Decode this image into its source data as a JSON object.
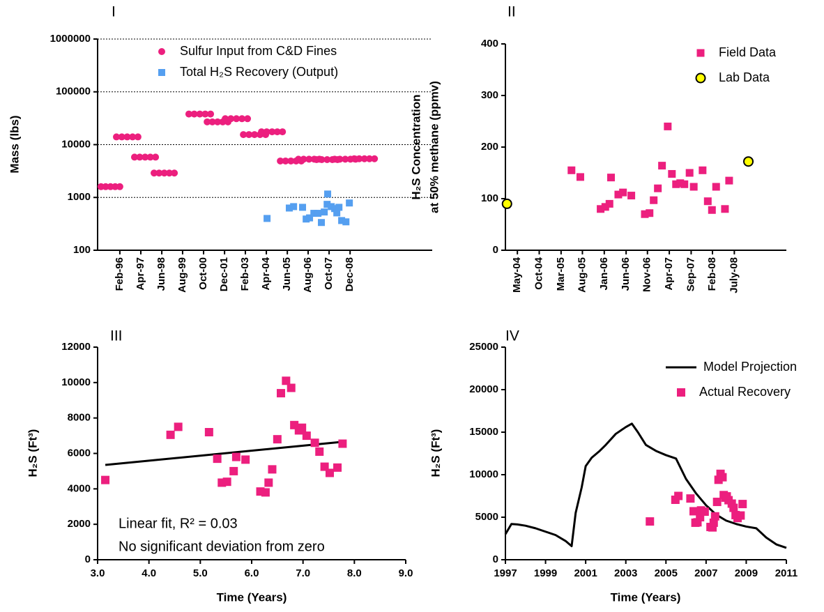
{
  "chart_data": [
    {
      "type": "scatter",
      "title": "I",
      "ylabel": "Mass (lbs)",
      "log_y": true,
      "grid": true,
      "legend": "upper right",
      "xlim": [
        1994.84,
        2013.5
      ],
      "xticks": [
        {
          "value": 1996.08,
          "label": "Feb-96"
        },
        {
          "value": 1997.25,
          "label": "Apr-97"
        },
        {
          "value": 1998.42,
          "label": "Jun-98"
        },
        {
          "value": 1999.58,
          "label": "Aug-99"
        },
        {
          "value": 2000.75,
          "label": "Oct-00"
        },
        {
          "value": 2001.92,
          "label": "Dec-01"
        },
        {
          "value": 2003.08,
          "label": "Feb-03"
        },
        {
          "value": 2004.25,
          "label": "Apr-04"
        },
        {
          "value": 2005.42,
          "label": "Jun-05"
        },
        {
          "value": 2006.58,
          "label": "Aug-06"
        },
        {
          "value": 2007.75,
          "label": "Oct-07"
        },
        {
          "value": 2008.92,
          "label": "Dec-08"
        }
      ],
      "ylim": [
        100,
        1000000
      ],
      "yticks": [
        100,
        1000,
        10000,
        100000,
        1000000
      ],
      "series": [
        {
          "name": "Sulfur Input from C&D Fines",
          "color": "#ec1f7e",
          "marker": "circle",
          "x": [
            1995.03,
            1995.29,
            1995.56,
            1995.82,
            1996.08,
            1995.89,
            1996.19,
            1996.49,
            1996.79,
            1997.09,
            1996.9,
            1997.19,
            1997.49,
            1997.78,
            1998.07,
            1997.99,
            1998.27,
            1998.56,
            1998.84,
            1999.12,
            1999.93,
            2000.23,
            2000.54,
            2000.84,
            2001.14,
            2000.95,
            2001.24,
            2001.53,
            2001.82,
            2002.11,
            2001.96,
            2002.27,
            2002.58,
            2002.89,
            2003.2,
            2002.97,
            2003.28,
            2003.59,
            2003.9,
            2004.21,
            2003.98,
            2004.27,
            2004.57,
            2004.86,
            2005.15,
            2005.03,
            2005.32,
            2005.62,
            2005.91,
            2006.2,
            2006.04,
            2006.33,
            2006.63,
            2006.92,
            2007.21,
            2007.05,
            2007.34,
            2007.64,
            2007.93,
            2008.22,
            2008.06,
            2008.35,
            2008.65,
            2008.94,
            2009.23,
            2009.15,
            2009.43,
            2009.72,
            2010.0,
            2010.28
          ],
          "values": [
            1600,
            1600,
            1600,
            1600,
            1600,
            14000,
            14000,
            14000,
            14000,
            14000,
            5800,
            5800,
            5800,
            5800,
            5800,
            2900,
            2900,
            2900,
            2900,
            2900,
            38000,
            38000,
            38000,
            38000,
            38000,
            27000,
            27000,
            27000,
            27000,
            27000,
            31000,
            31000,
            31000,
            31000,
            31000,
            15500,
            15500,
            15500,
            15500,
            15500,
            17500,
            17500,
            17500,
            17500,
            17500,
            4900,
            4900,
            4900,
            4900,
            4900,
            5300,
            5300,
            5300,
            5300,
            5300,
            5200,
            5200,
            5200,
            5200,
            5200,
            5300,
            5300,
            5300,
            5300,
            5300,
            5400,
            5400,
            5400,
            5400,
            5400
          ]
        },
        {
          "name": "Total H₂S Recovery (Output)",
          "color": "#559ff0",
          "marker": "square",
          "x": [
            2004.29,
            2005.53,
            2005.77,
            2006.27,
            2006.47,
            2006.66,
            2006.9,
            2007.13,
            2007.32,
            2007.48,
            2007.64,
            2007.67,
            2007.87,
            2008.06,
            2008.18,
            2008.3,
            2008.45,
            2008.69,
            2008.88
          ],
          "values": [
            400,
            630,
            670,
            650,
            390,
            410,
            500,
            500,
            335,
            530,
            740,
            1160,
            670,
            615,
            510,
            650,
            365,
            345,
            785
          ]
        }
      ]
    },
    {
      "type": "scatter",
      "title": "II",
      "ylabel": [
        "H₂S Concentration",
        "at 50% methane (ppmv)"
      ],
      "legend": "upper right",
      "xlim": [
        2004.1,
        2009.5
      ],
      "xticks": [
        {
          "value": 2004.33,
          "label": "May-04"
        },
        {
          "value": 2004.75,
          "label": "Oct-04"
        },
        {
          "value": 2005.17,
          "label": "Mar-05"
        },
        {
          "value": 2005.58,
          "label": "Aug-05"
        },
        {
          "value": 2006.0,
          "label": "Jan-06"
        },
        {
          "value": 2006.42,
          "label": "Jun-06"
        },
        {
          "value": 2006.83,
          "label": "Nov-06"
        },
        {
          "value": 2007.25,
          "label": "Apr-07"
        },
        {
          "value": 2007.67,
          "label": "Sep-07"
        },
        {
          "value": 2008.08,
          "label": "Feb-08"
        },
        {
          "value": 2008.5,
          "label": "July-08"
        }
      ],
      "ylim": [
        0,
        400
      ],
      "yticks": [
        0,
        100,
        200,
        300,
        400
      ],
      "series": [
        {
          "name": "Field Data",
          "color": "#ec1f7e",
          "marker": "square",
          "x": [
            2005.37,
            2005.54,
            2006.13,
            2005.93,
            2006.02,
            2006.1,
            2006.27,
            2006.36,
            2006.52,
            2006.78,
            2006.87,
            2006.95,
            2007.03,
            2007.11,
            2007.22,
            2007.3,
            2007.38,
            2007.46,
            2007.54,
            2007.64,
            2007.72,
            2007.89,
            2007.99,
            2008.07,
            2008.15,
            2008.32,
            2008.4
          ],
          "values": [
            155,
            142,
            141,
            80,
            84,
            90,
            108,
            112,
            106,
            70,
            72,
            97,
            120,
            164,
            240,
            148,
            128,
            130,
            128,
            150,
            123,
            155,
            95,
            78,
            123,
            80,
            135
          ]
        },
        {
          "name": "Lab Data",
          "color": "#ffff00",
          "edgecolor": "#000000",
          "marker": "circle",
          "x": [
            2004.13,
            2008.77
          ],
          "values": [
            90,
            172
          ]
        }
      ]
    },
    {
      "type": "scatter",
      "title": "III",
      "xlabel": "Time (Years)",
      "ylabel": "H₂S (Ft³)",
      "annotations": [
        "Linear fit, R² = 0.03",
        "No significant deviation from zero"
      ],
      "xlim": [
        3,
        9
      ],
      "xticks": [
        {
          "value": 3,
          "label": "3.0"
        },
        {
          "value": 4,
          "label": "4.0"
        },
        {
          "value": 5,
          "label": "5.0"
        },
        {
          "value": 6,
          "label": "6.0"
        },
        {
          "value": 7,
          "label": "7.0"
        },
        {
          "value": 8,
          "label": "8.0"
        },
        {
          "value": 9,
          "label": "9.0"
        }
      ],
      "ylim": [
        0,
        12000
      ],
      "yticks": [
        0,
        2000,
        4000,
        6000,
        8000,
        10000,
        12000
      ],
      "series": [
        {
          "color": "#000000",
          "marker": "line",
          "x": [
            3.15,
            7.75
          ],
          "values": [
            5350,
            6650
          ]
        },
        {
          "color": "#ec1f7e",
          "marker": "square",
          "x": [
            3.15,
            4.42,
            4.57,
            5.17,
            5.33,
            5.42,
            5.52,
            5.65,
            5.7,
            5.88,
            6.17,
            6.27,
            6.33,
            6.4,
            6.5,
            6.57,
            6.67,
            6.77,
            6.83,
            6.92,
            6.98,
            7.07,
            7.23,
            7.32,
            7.42,
            7.52,
            7.67,
            7.77
          ],
          "values": [
            4500,
            7050,
            7500,
            7200,
            5700,
            4350,
            4400,
            5000,
            5800,
            5650,
            3850,
            3800,
            4350,
            5100,
            6800,
            9400,
            10100,
            9700,
            7600,
            7300,
            7450,
            7000,
            6600,
            6100,
            5250,
            4900,
            5200,
            6550
          ]
        }
      ]
    },
    {
      "type": "scatter",
      "title": "IV",
      "xlabel": "Time (Years)",
      "ylabel": "H₂S (Ft³)",
      "legend": "upper right",
      "xlim": [
        1997,
        2011
      ],
      "xticks": [
        1997,
        1999,
        2001,
        2003,
        2005,
        2007,
        2009,
        2011
      ],
      "ylim": [
        0,
        25000
      ],
      "yticks": [
        0,
        5000,
        10000,
        15000,
        20000,
        25000
      ],
      "series": [
        {
          "name": "Model Projection",
          "color": "#000000",
          "marker": "line",
          "x": [
            1997,
            1997.3,
            1997.6,
            1998,
            1998.5,
            1999,
            1999.5,
            2000,
            2000.3,
            2000.5,
            2000.8,
            2001,
            2001.3,
            2001.7,
            2002,
            2002.5,
            2003,
            2003.3,
            2003.6,
            2004,
            2004.5,
            2005,
            2005.5,
            2006,
            2006.5,
            2007,
            2007.5,
            2008,
            2008.5,
            2009,
            2009.5,
            2010,
            2010.5,
            2011
          ],
          "values": [
            3000,
            4200,
            4150,
            4000,
            3700,
            3300,
            2900,
            2200,
            1600,
            5500,
            8500,
            11000,
            12000,
            12800,
            13500,
            14800,
            15600,
            16000,
            15000,
            13500,
            12800,
            12300,
            11900,
            9500,
            7800,
            6400,
            5300,
            4600,
            4200,
            3900,
            3700,
            2600,
            1800,
            1400
          ]
        },
        {
          "name": "Actual Recovery",
          "color": "#ec1f7e",
          "marker": "square",
          "x": [
            2004.2,
            2005.47,
            2005.62,
            2006.22,
            2006.38,
            2006.47,
            2006.57,
            2006.7,
            2006.75,
            2006.93,
            2007.22,
            2007.32,
            2007.38,
            2007.45,
            2007.55,
            2007.62,
            2007.72,
            2007.82,
            2007.88,
            2007.97,
            2008.03,
            2008.12,
            2008.28,
            2008.37,
            2008.47,
            2008.57,
            2008.72,
            2008.82
          ],
          "values": [
            4500,
            7050,
            7500,
            7200,
            5700,
            4350,
            4400,
            5000,
            5800,
            5650,
            3850,
            3800,
            4350,
            5100,
            6800,
            9400,
            10100,
            9700,
            7600,
            7300,
            7450,
            7000,
            6600,
            6100,
            5250,
            4900,
            5200,
            6550
          ]
        }
      ]
    }
  ]
}
